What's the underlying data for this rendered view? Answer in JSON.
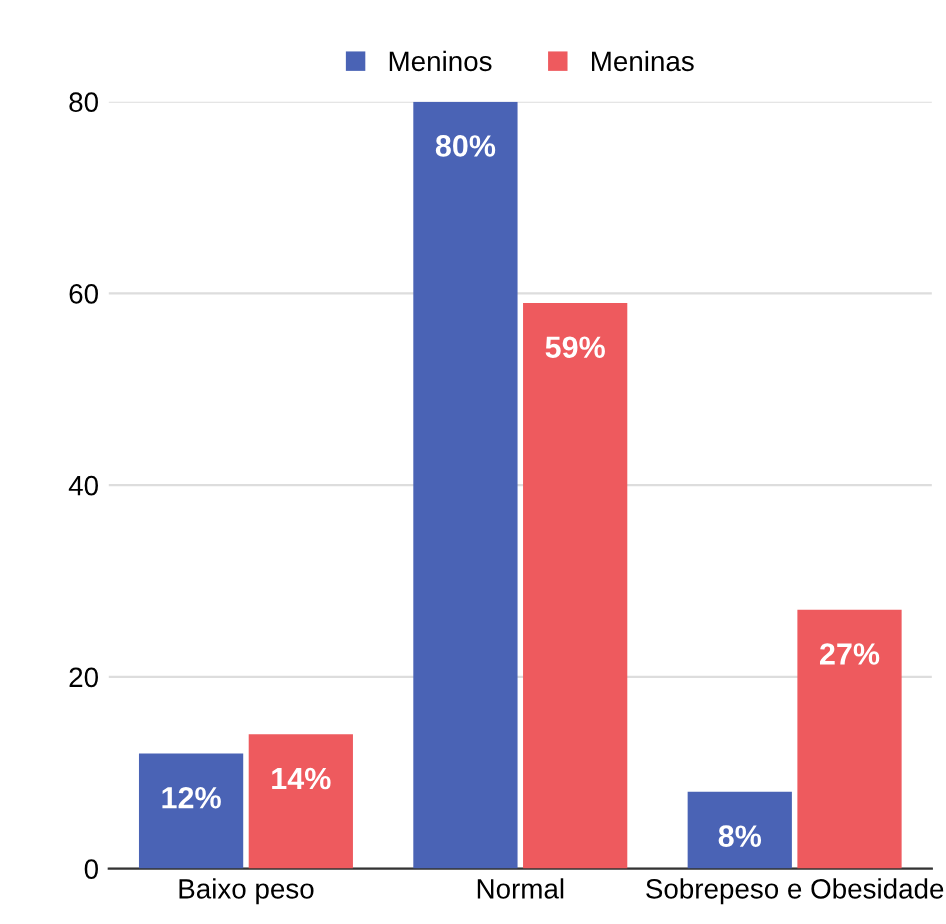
{
  "chart_data": {
    "type": "bar",
    "categories": [
      "Baixo peso",
      "Normal",
      "Sobrepeso e Obesidade"
    ],
    "series": [
      {
        "name": "Meninos",
        "color": "#4a63b5",
        "values": [
          12,
          80,
          8
        ],
        "value_labels": [
          "12%",
          "80%",
          "8%"
        ]
      },
      {
        "name": "Meninas",
        "color": "#ee5a5e",
        "values": [
          14,
          59,
          27
        ],
        "value_labels": [
          "14%",
          "59%",
          "27%"
        ]
      }
    ],
    "ylim": [
      0,
      80
    ],
    "yticks": [
      0,
      20,
      40,
      60,
      80
    ],
    "grid": "y",
    "legend": "top"
  }
}
